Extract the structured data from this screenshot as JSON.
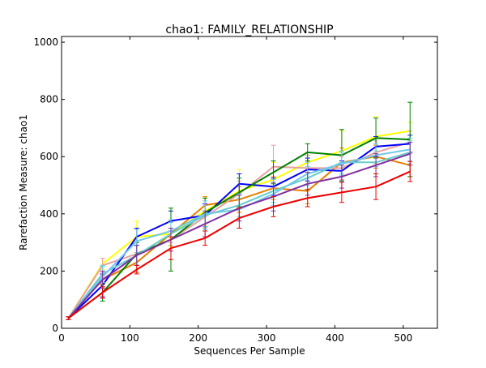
{
  "chart_data": {
    "type": "line",
    "title": "chao1: FAMILY_RELATIONSHIP",
    "xlabel": "Sequences Per Sample",
    "ylabel": "Rarefaction Measure: chao1",
    "xlim": [
      0,
      550
    ],
    "ylim": [
      0,
      1020
    ],
    "xticks": [
      0,
      100,
      200,
      300,
      400,
      500
    ],
    "yticks": [
      0,
      200,
      400,
      600,
      800,
      1000
    ],
    "grid": false,
    "legend": "none",
    "x": [
      10,
      60,
      110,
      160,
      210,
      260,
      310,
      360,
      410,
      460,
      510
    ],
    "series": [
      {
        "color": "#ffff00",
        "values": [
          35,
          225,
          320,
          330,
          410,
          480,
          520,
          580,
          620,
          670,
          690
        ],
        "err": [
          5,
          20,
          55,
          45,
          50,
          75,
          60,
          35,
          70,
          70,
          30
        ]
      },
      {
        "color": "#e88000",
        "values": [
          35,
          170,
          230,
          330,
          430,
          450,
          490,
          480,
          580,
          600,
          570
        ],
        "err": [
          5,
          18,
          35,
          40,
          30,
          45,
          40,
          45,
          50,
          40,
          40
        ]
      },
      {
        "color": "#e8a0a0",
        "values": [
          35,
          220,
          260,
          310,
          390,
          470,
          565,
          560,
          560,
          615,
          650
        ],
        "err": [
          5,
          25,
          40,
          40,
          40,
          45,
          75,
          45,
          40,
          40,
          40
        ]
      },
      {
        "color": "#0000ff",
        "values": [
          35,
          150,
          320,
          375,
          395,
          505,
          495,
          555,
          550,
          635,
          645
        ],
        "err": [
          5,
          40,
          30,
          35,
          40,
          35,
          30,
          40,
          35,
          35,
          30
        ]
      },
      {
        "color": "#008000",
        "values": [
          35,
          125,
          260,
          310,
          405,
          475,
          545,
          615,
          605,
          665,
          660
        ],
        "err": [
          5,
          30,
          40,
          110,
          50,
          50,
          40,
          30,
          90,
          70,
          130
        ]
      },
      {
        "color": "#66cccc",
        "values": [
          35,
          190,
          255,
          330,
          395,
          430,
          480,
          525,
          580,
          580,
          615
        ],
        "err": [
          5,
          30,
          35,
          40,
          50,
          40,
          40,
          40,
          40,
          40,
          40
        ]
      },
      {
        "color": "#70c8e8",
        "values": [
          35,
          180,
          305,
          340,
          400,
          415,
          470,
          540,
          575,
          605,
          625
        ],
        "err": [
          5,
          35,
          40,
          40,
          45,
          40,
          40,
          40,
          40,
          40,
          40
        ]
      },
      {
        "color": "#8030a0",
        "values": [
          35,
          170,
          255,
          310,
          365,
          420,
          460,
          505,
          530,
          570,
          610
        ],
        "err": [
          5,
          30,
          35,
          40,
          45,
          45,
          50,
          40,
          40,
          40,
          40
        ]
      },
      {
        "color": "#ee0000",
        "values": [
          35,
          125,
          205,
          280,
          315,
          385,
          425,
          455,
          475,
          495,
          548
        ],
        "err": [
          5,
          20,
          15,
          40,
          25,
          35,
          35,
          30,
          35,
          45,
          35
        ]
      }
    ]
  }
}
